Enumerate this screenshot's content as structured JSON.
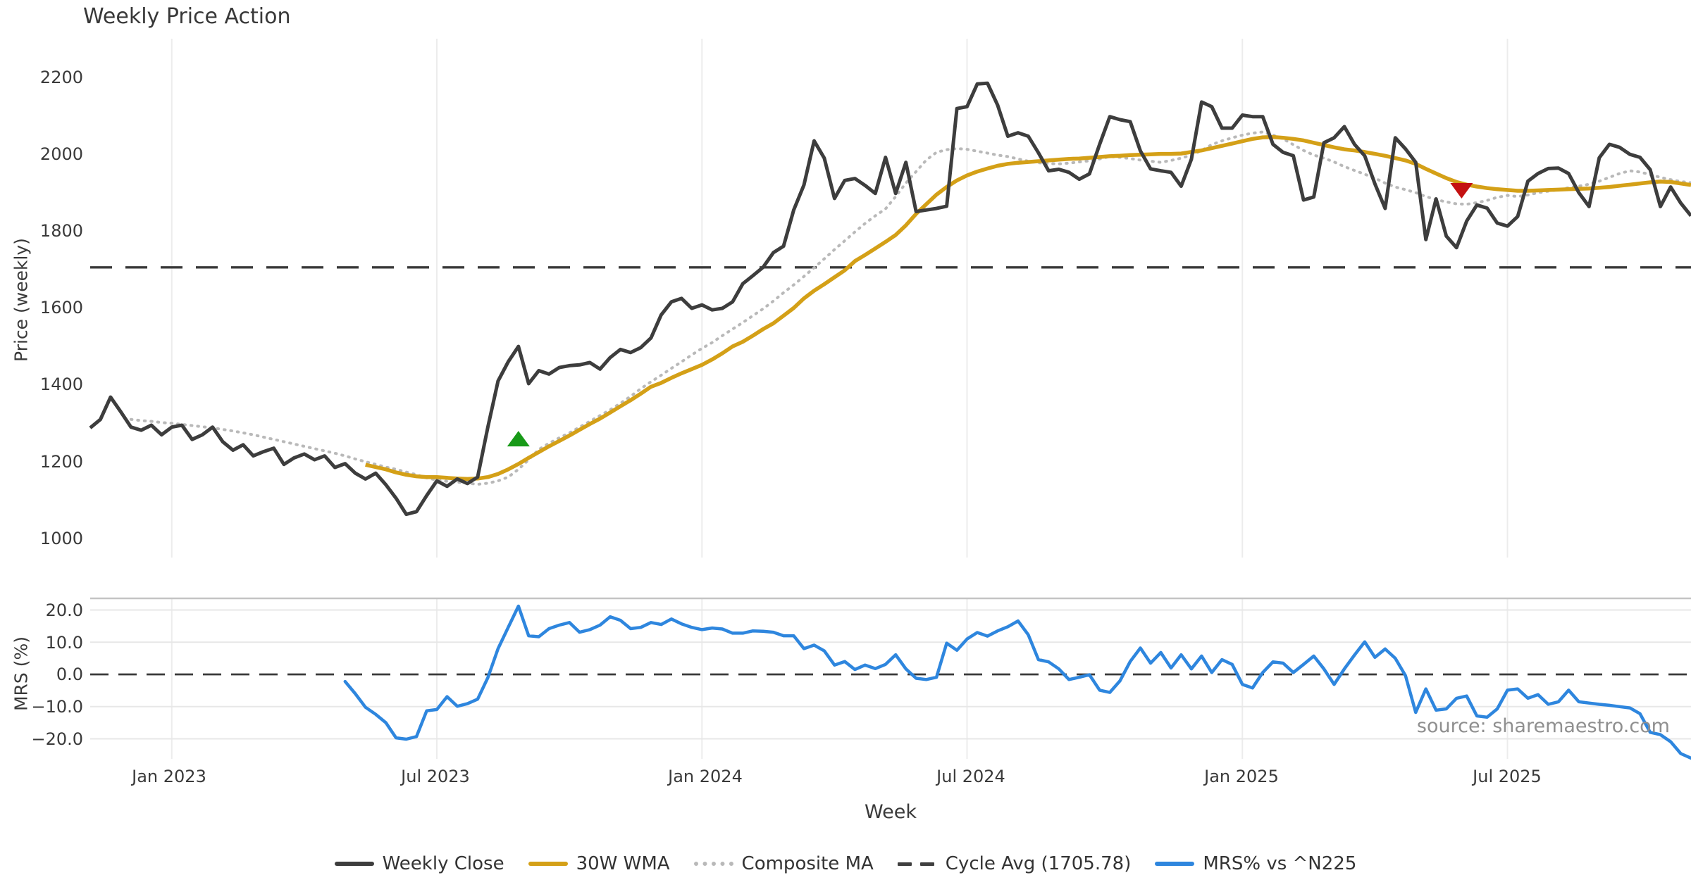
{
  "title": "Weekly Price Action",
  "source_note": "source: sharemaestro.com",
  "axes": {
    "price_label": "Price (weekly)",
    "mrs_label": "MRS (%)",
    "x_label": "Week",
    "price_ticks": [
      "2200",
      "2000",
      "1800",
      "1600",
      "1400",
      "1200",
      "1000"
    ],
    "mrs_ticks": [
      "20.0",
      "10.0",
      "0.0",
      "−10.0",
      "−20.0"
    ],
    "x_ticks": [
      "Jan 2023",
      "Jul 2023",
      "Jan 2024",
      "Jul 2024",
      "Jan 2025",
      "Jul 2025"
    ]
  },
  "legend": {
    "items": [
      {
        "label": "Weekly Close",
        "swatch": "solid",
        "color": "#3d3d3d"
      },
      {
        "label": "30W WMA",
        "swatch": "solid",
        "color": "#d4a017"
      },
      {
        "label": "Composite MA",
        "swatch": "dotted",
        "color": "#b9b9b9"
      },
      {
        "label": "Cycle Avg (1705.78)",
        "swatch": "dashed",
        "color": "#3f3f3f"
      },
      {
        "label": "MRS% vs ^N225",
        "swatch": "solid",
        "color": "#2e86de"
      }
    ]
  },
  "colors": {
    "weekly_close": "#3d3d3d",
    "wma": "#d4a017",
    "composite": "#b9b9b9",
    "cycle_avg": "#3a3a3a",
    "mrs": "#2e86de",
    "mrs_zero": "#3a3a3a",
    "buy_marker": "#189a18",
    "sell_marker": "#c41111",
    "grid_vertical": "#ececec",
    "grid_horizontal": "#e7e7e7",
    "panel_spine": "#c4c4c4"
  },
  "chart_data": {
    "type": "line",
    "title": "Weekly Price Action",
    "xlabel": "Week",
    "x": {
      "unit": "week",
      "n_weeks": 158,
      "start_date": "2022-11-07",
      "tick_weeks": [
        8,
        34,
        60,
        86,
        113,
        139
      ],
      "tick_labels": [
        "Jan 2023",
        "Jul 2023",
        "Jan 2024",
        "Jul 2024",
        "Jan 2025",
        "Jul 2025"
      ]
    },
    "panels": [
      {
        "id": "price",
        "ylabel": "Price (weekly)",
        "ylim": [
          950,
          2300
        ],
        "yticks": [
          2200,
          2000,
          1800,
          1600,
          1400,
          1200,
          1000
        ],
        "cycle_avg": 1705.78,
        "series": [
          {
            "name": "Weekly Close",
            "start_week": 0,
            "values": [
              1288,
              1310,
              1368,
              1330,
              1290,
              1282,
              1295,
              1270,
              1290,
              1295,
              1258,
              1270,
              1290,
              1252,
              1230,
              1244,
              1215,
              1226,
              1235,
              1193,
              1210,
              1220,
              1205,
              1215,
              1185,
              1195,
              1170,
              1155,
              1170,
              1140,
              1105,
              1063,
              1070,
              1112,
              1150,
              1136,
              1155,
              1143,
              1160,
              1290,
              1410,
              1460,
              1500,
              1403,
              1437,
              1428,
              1445,
              1450,
              1452,
              1458,
              1441,
              1471,
              1492,
              1484,
              1497,
              1522,
              1582,
              1616,
              1625,
              1599,
              1608,
              1595,
              1599,
              1616,
              1663,
              1684,
              1706,
              1744,
              1761,
              1855,
              1920,
              2035,
              1990,
              1885,
              1932,
              1937,
              1919,
              1898,
              1992,
              1898,
              1979,
              1851,
              1855,
              1859,
              1865,
              2119,
              2124,
              2183,
              2185,
              2128,
              2047,
              2056,
              2047,
              2004,
              1957,
              1961,
              1953,
              1935,
              1949,
              2026,
              2098,
              2090,
              2085,
              2009,
              1962,
              1957,
              1953,
              1917,
              1987,
              2136,
              2124,
              2068,
              2068,
              2102,
              2098,
              2098,
              2026,
              2005,
              1996,
              1881,
              1889,
              2030,
              2043,
              2072,
              2026,
              1996,
              1923,
              1859,
              2043,
              2014,
              1979,
              1778,
              1884,
              1787,
              1757,
              1826,
              1868,
              1860,
              1821,
              1813,
              1838,
              1930,
              1950,
              1963,
              1964,
              1950,
              1900,
              1864,
              1991,
              2026,
              2018,
              2000,
              1992,
              1960,
              1864,
              1915,
              1873,
              1840
            ]
          },
          {
            "name": "30W WMA",
            "start_week": 27,
            "values": [
              1192,
              1186,
              1180,
              1172,
              1166,
              1162,
              1160,
              1160,
              1158,
              1156,
              1155,
              1156,
              1160,
              1168,
              1180,
              1194,
              1210,
              1225,
              1240,
              1254,
              1268,
              1283,
              1298,
              1312,
              1328,
              1344,
              1360,
              1377,
              1395,
              1405,
              1418,
              1430,
              1441,
              1452,
              1466,
              1482,
              1500,
              1512,
              1528,
              1545,
              1560,
              1580,
              1600,
              1625,
              1645,
              1662,
              1680,
              1698,
              1722,
              1738,
              1755,
              1772,
              1790,
              1815,
              1845,
              1870,
              1895,
              1915,
              1932,
              1945,
              1955,
              1963,
              1970,
              1975,
              1978,
              1980,
              1982,
              1984,
              1986,
              1988,
              1989,
              1991,
              1993,
              1995,
              1996,
              1998,
              1999,
              2000,
              2001,
              2001,
              2002,
              2006,
              2010,
              2016,
              2022,
              2028,
              2034,
              2040,
              2044,
              2045,
              2043,
              2040,
              2036,
              2030,
              2024,
              2018,
              2013,
              2010,
              2006,
              2001,
              1996,
              1990,
              1984,
              1975,
              1962,
              1950,
              1938,
              1928,
              1921,
              1916,
              1912,
              1909,
              1907,
              1905,
              1905,
              1906,
              1907,
              1908,
              1909,
              1910,
              1911,
              1913,
              1915,
              1918,
              1921,
              1924,
              1927,
              1929,
              1928,
              1924,
              1920
            ]
          },
          {
            "name": "Composite MA",
            "start_week": 4,
            "values": [
              1310,
              1307,
              1305,
              1302,
              1300,
              1297,
              1294,
              1291,
              1288,
              1284,
              1280,
              1275,
              1270,
              1264,
              1258,
              1252,
              1246,
              1240,
              1234,
              1228,
              1222,
              1215,
              1207,
              1200,
              1193,
              1186,
              1180,
              1173,
              1166,
              1158,
              1152,
              1149,
              1147,
              1144,
              1141,
              1144,
              1150,
              1160,
              1180,
              1205,
              1232,
              1248,
              1262,
              1275,
              1290,
              1305,
              1320,
              1335,
              1352,
              1370,
              1390,
              1408,
              1425,
              1443,
              1460,
              1478,
              1495,
              1510,
              1528,
              1545,
              1562,
              1580,
              1598,
              1618,
              1640,
              1660,
              1682,
              1705,
              1728,
              1752,
              1775,
              1798,
              1820,
              1840,
              1858,
              1890,
              1925,
              1955,
              1985,
              2005,
              2012,
              2015,
              2013,
              2008,
              2003,
              1998,
              1994,
              1988,
              1982,
              1978,
              1976,
              1975,
              1977,
              1980,
              1983,
              1988,
              1994,
              1992,
              1989,
              1985,
              1982,
              1979,
              1984,
              1990,
              1998,
              2010,
              2025,
              2035,
              2043,
              2050,
              2055,
              2058,
              2050,
              2040,
              2025,
              2010,
              1998,
              1990,
              1980,
              1968,
              1958,
              1948,
              1938,
              1925,
              1915,
              1908,
              1900,
              1890,
              1882,
              1876,
              1871,
              1870,
              1874,
              1880,
              1888,
              1893,
              1890,
              1894,
              1900,
              1904,
              1908,
              1913,
              1917,
              1922,
              1930,
              1940,
              1950,
              1957,
              1954,
              1947,
              1940,
              1934,
              1929,
              1926
            ]
          }
        ],
        "markers": [
          {
            "signal": "buy",
            "shape": "triangle-up",
            "week": 42,
            "price": 1260
          },
          {
            "signal": "sell",
            "shape": "triangle-down",
            "week": 134.5,
            "price": 1905
          }
        ]
      },
      {
        "id": "mrs",
        "ylabel": "MRS (%)",
        "ylim": [
          -26.5,
          23.5
        ],
        "yticks": [
          20.0,
          10.0,
          0.0,
          -10.0,
          -20.0
        ],
        "zero_line": 0.0,
        "series": [
          {
            "name": "MRS% vs ^N225",
            "start_week": 25,
            "values": [
              -2.2,
              -6.0,
              -10.2,
              -12.4,
              -15.0,
              -19.7,
              -20.1,
              -19.3,
              -11.3,
              -10.9,
              -6.9,
              -9.9,
              -9.1,
              -7.7,
              -1.0,
              8.0,
              14.6,
              21.2,
              12.0,
              11.7,
              14.2,
              15.3,
              16.1,
              13.1,
              13.9,
              15.3,
              17.9,
              16.8,
              14.2,
              14.6,
              16.1,
              15.5,
              17.2,
              15.7,
              14.6,
              13.9,
              14.4,
              14.1,
              12.8,
              12.8,
              13.5,
              13.4,
              13.1,
              12.0,
              12.0,
              8.0,
              9.1,
              7.3,
              2.9,
              4.0,
              1.5,
              2.9,
              1.8,
              3.1,
              6.1,
              1.7,
              -1.2,
              -1.6,
              -0.9,
              9.7,
              7.5,
              11.0,
              13.0,
              11.9,
              13.5,
              14.8,
              16.6,
              12.3,
              4.6,
              3.9,
              1.7,
              -1.6,
              -0.9,
              -0.1,
              -4.9,
              -5.6,
              -2.0,
              4.0,
              8.2,
              3.5,
              6.8,
              2.0,
              6.1,
              1.7,
              5.7,
              0.6,
              4.6,
              3.1,
              -3.1,
              -4.2,
              0.6,
              3.9,
              3.5,
              0.6,
              3.1,
              5.7,
              1.7,
              -3.1,
              1.7,
              6.0,
              10.1,
              5.3,
              7.9,
              5.0,
              -0.4,
              -11.8,
              -4.5,
              -11.1,
              -10.7,
              -7.4,
              -6.7,
              -12.9,
              -13.3,
              -10.7,
              -4.9,
              -4.5,
              -7.4,
              -6.3,
              -9.3,
              -8.5,
              -4.9,
              -8.5,
              -8.9,
              -9.3,
              -9.6,
              -10.0,
              -10.4,
              -12.2,
              -18.0,
              -18.7,
              -20.9,
              -24.6,
              -26.0
            ]
          }
        ]
      }
    ]
  }
}
